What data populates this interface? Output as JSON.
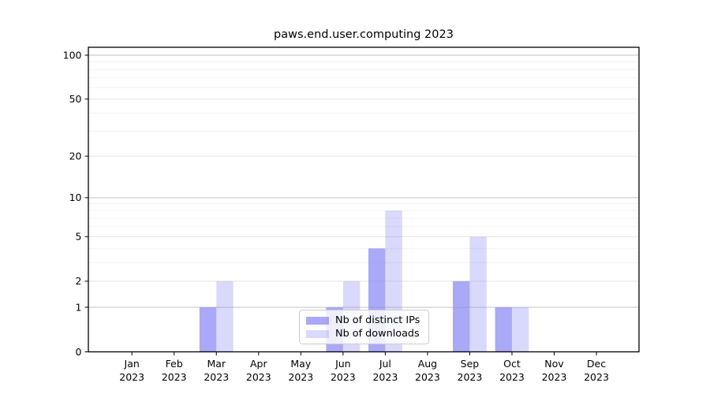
{
  "title": "paws.end.user.computing 2023",
  "legend": {
    "items": [
      {
        "label": "Nb of distinct IPs",
        "color": "rgba(136,136,245,0.72)"
      },
      {
        "label": "Nb of downloads",
        "color": "rgba(136,136,245,0.32)"
      }
    ]
  },
  "axes": {
    "x_tick_labels": [
      {
        "month": "Jan",
        "year": "2023"
      },
      {
        "month": "Feb",
        "year": "2023"
      },
      {
        "month": "Mar",
        "year": "2023"
      },
      {
        "month": "Apr",
        "year": "2023"
      },
      {
        "month": "May",
        "year": "2023"
      },
      {
        "month": "Jun",
        "year": "2023"
      },
      {
        "month": "Jul",
        "year": "2023"
      },
      {
        "month": "Aug",
        "year": "2023"
      },
      {
        "month": "Sep",
        "year": "2023"
      },
      {
        "month": "Oct",
        "year": "2023"
      },
      {
        "month": "Nov",
        "year": "2023"
      },
      {
        "month": "Dec",
        "year": "2023"
      }
    ],
    "y_tick_values": [
      0,
      1,
      2,
      5,
      10,
      20,
      50,
      100
    ]
  },
  "chart_data": {
    "type": "bar",
    "title": "paws.end.user.computing 2023",
    "categories": [
      "Jan 2023",
      "Feb 2023",
      "Mar 2023",
      "Apr 2023",
      "May 2023",
      "Jun 2023",
      "Jul 2023",
      "Aug 2023",
      "Sep 2023",
      "Oct 2023",
      "Nov 2023",
      "Dec 2023"
    ],
    "series": [
      {
        "name": "Nb of distinct IPs",
        "values": [
          0,
          0,
          1,
          0,
          0,
          1,
          4,
          0,
          2,
          1,
          0,
          0
        ]
      },
      {
        "name": "Nb of downloads",
        "values": [
          0,
          0,
          2,
          0,
          0,
          2,
          8,
          0,
          5,
          1,
          0,
          0
        ]
      }
    ],
    "yscale": "log1p",
    "yticks_major": [
      0,
      1,
      2,
      5,
      10,
      20,
      50,
      100
    ],
    "yticks_minor": [
      3,
      4,
      6,
      7,
      8,
      9,
      30,
      40,
      60,
      70,
      80,
      90
    ],
    "ylim": [
      0,
      113
    ],
    "xlabel": "",
    "ylabel": "",
    "grid": true,
    "legend_position": "lower center inside"
  },
  "colors": {
    "bar_fill_dark": "rgba(136,136,245,0.72)",
    "bar_fill_light": "rgba(136,136,245,0.32)",
    "grid_decade": "#c2c2c2",
    "grid_sub": "#e2e2e2",
    "grid_minor": "#f2f2f2",
    "spine": "#000000",
    "tick_label": "#000000",
    "background": "#ffffff"
  }
}
